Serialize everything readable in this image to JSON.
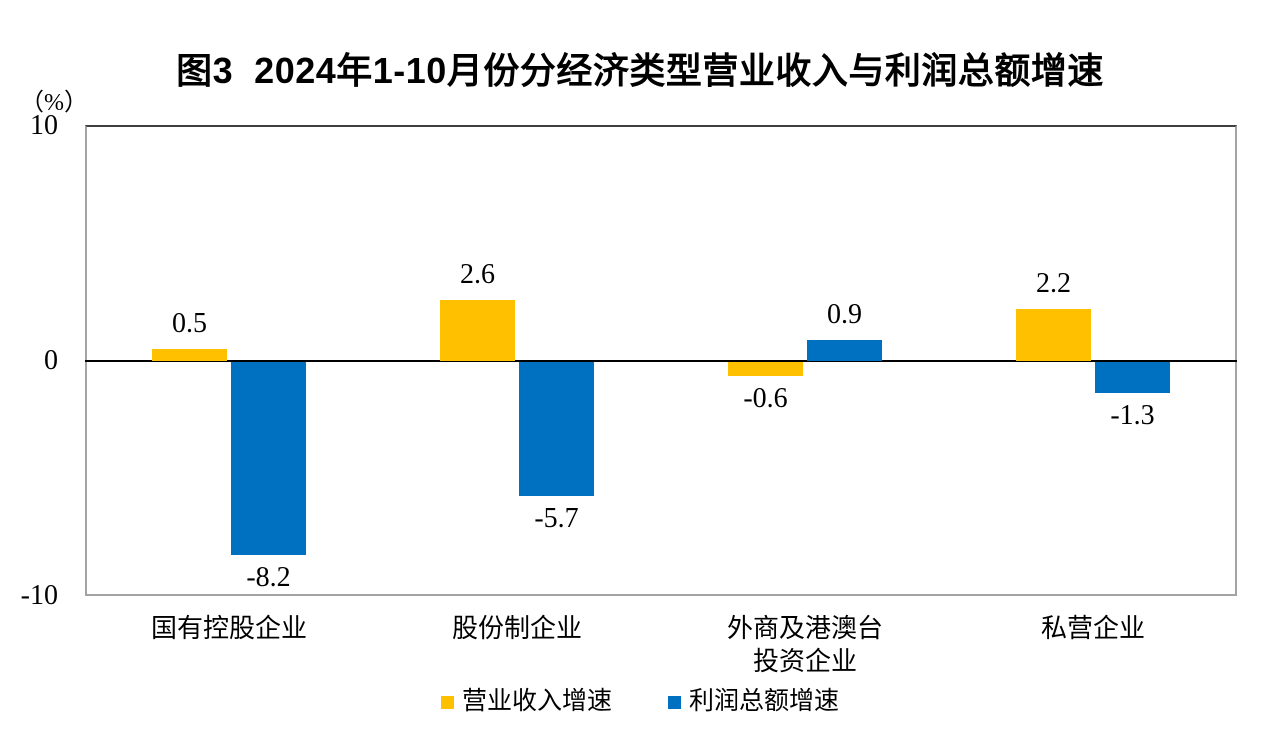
{
  "chart_data": {
    "type": "bar",
    "title": "图3  2024年1-10月份分经济类型营业收入与利润总额增速",
    "unit_label": "（%）",
    "categories": [
      "国有控股企业",
      "股份制企业",
      "外商及港澳台\n投资企业",
      "私营企业"
    ],
    "series": [
      {
        "name": "营业收入增速",
        "color": "#FFC000",
        "values": [
          0.5,
          2.6,
          -0.6,
          2.2
        ]
      },
      {
        "name": "利润总额增速",
        "color": "#0070C0",
        "values": [
          -8.2,
          -5.7,
          0.9,
          -1.3
        ]
      }
    ],
    "ylim": [
      -10,
      10
    ],
    "yticks": [
      10,
      0,
      -10
    ],
    "grid": false,
    "legend_position": "bottom",
    "colors": {
      "revenue": "#FFC000",
      "profit": "#0070C0",
      "axis_border": "#a3a3a3",
      "zero_line": "#000000"
    }
  }
}
